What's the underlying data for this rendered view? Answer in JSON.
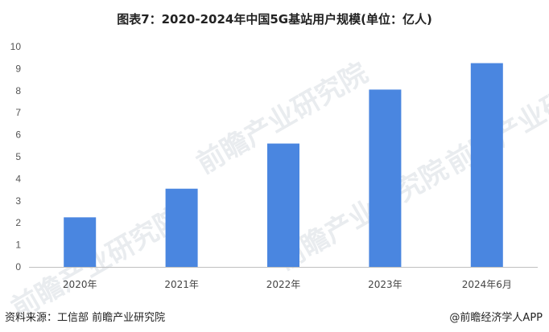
{
  "title": "图表7：2020-2024年中国5G基站用户规模(单位：亿人)",
  "watermark": "前瞻产业研究院",
  "source_left": "资料来源：工信部 前瞻产业研究院",
  "source_right": "@前瞻经济学人APP",
  "colors": {
    "bar": "#4a86e0",
    "axis": "#bfbfbf"
  },
  "chart_data": {
    "type": "bar",
    "title": "图表7：2020-2024年中国5G基站用户规模(单位：亿人)",
    "categories": [
      "2020年",
      "2021年",
      "2022年",
      "2023年",
      "2024年6月"
    ],
    "values": [
      2.25,
      3.55,
      5.6,
      8.05,
      9.25
    ],
    "ylim": [
      0,
      10
    ],
    "yticks": [
      0,
      1,
      2,
      3,
      4,
      5,
      6,
      7,
      8,
      9,
      10
    ],
    "xlabel": "",
    "ylabel": "",
    "grid": false,
    "legend": "none"
  }
}
